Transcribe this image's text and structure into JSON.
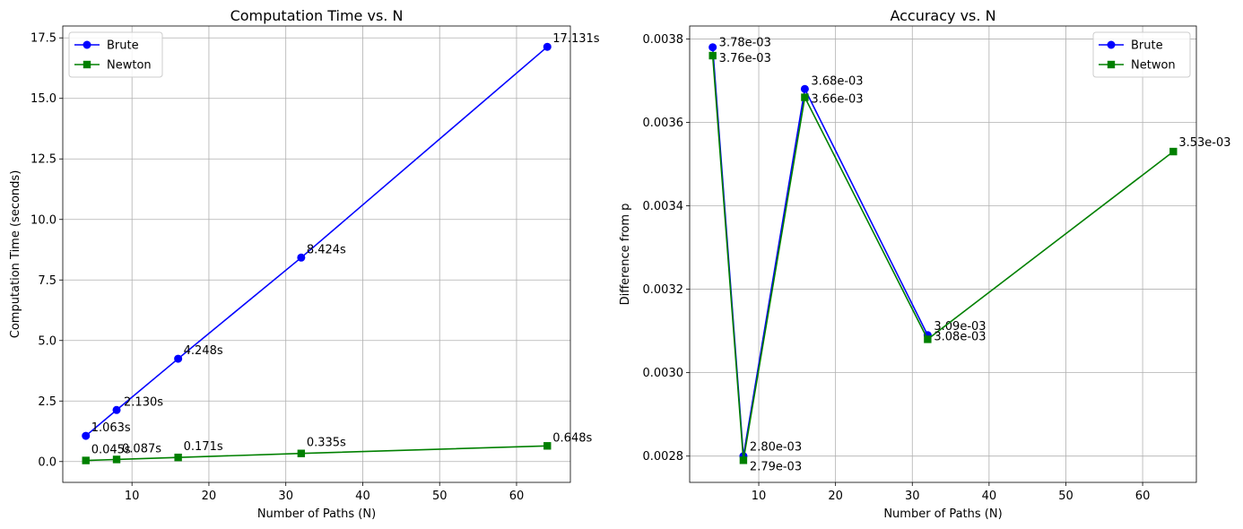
{
  "chart_data": [
    {
      "type": "line",
      "title": "Computation Time vs. N",
      "xlabel": "Number of Paths (N)",
      "ylabel": "Computation Time (seconds)",
      "xlim": [
        1.0,
        67.0
      ],
      "ylim": [
        -0.86,
        17.99
      ],
      "xticks": [
        10,
        20,
        30,
        40,
        50,
        60
      ],
      "xtick_labels": [
        "10",
        "20",
        "30",
        "40",
        "50",
        "60"
      ],
      "yticks": [
        0.0,
        2.5,
        5.0,
        7.5,
        10.0,
        12.5,
        15.0,
        17.5
      ],
      "ytick_labels": [
        "0.0",
        "2.5",
        "5.0",
        "7.5",
        "10.0",
        "12.5",
        "15.0",
        "17.5"
      ],
      "grid": true,
      "legend_position": "top-left",
      "x": [
        4,
        8,
        16,
        32,
        64
      ],
      "series": [
        {
          "name": "Brute",
          "color": "#0000ff",
          "marker": "circle",
          "values": [
            1.063,
            2.13,
            4.248,
            8.424,
            17.131
          ],
          "labels": [
            "1.063s",
            "2.130s",
            "4.248s",
            "8.424s",
            "17.131s"
          ]
        },
        {
          "name": "Newton",
          "color": "#008000",
          "marker": "square",
          "values": [
            0.045,
            0.087,
            0.171,
            0.335,
            0.648
          ],
          "labels": [
            "0.045s",
            "0.087s",
            "0.171s",
            "0.335s",
            "0.648s"
          ]
        }
      ]
    },
    {
      "type": "line",
      "title": "Accuracy vs. N",
      "xlabel": "Number of Paths (N)",
      "ylabel": "Difference from p",
      "xlim": [
        1.0,
        67.0
      ],
      "ylim": [
        0.002737,
        0.003831
      ],
      "xticks": [
        10,
        20,
        30,
        40,
        50,
        60
      ],
      "xtick_labels": [
        "10",
        "20",
        "30",
        "40",
        "50",
        "60"
      ],
      "yticks": [
        0.0028,
        0.003,
        0.0032,
        0.0034,
        0.0036,
        0.0038
      ],
      "ytick_labels": [
        "0.0028",
        "0.0030",
        "0.0032",
        "0.0034",
        "0.0036",
        "0.0038"
      ],
      "grid": true,
      "legend_position": "top-right",
      "x": [
        4,
        8,
        16,
        32,
        64
      ],
      "series": [
        {
          "name": "Brute",
          "color": "#0000ff",
          "marker": "circle",
          "values": [
            0.00378,
            0.0028,
            0.00368,
            0.00309,
            null
          ],
          "labels": [
            "3.78e-03",
            "2.80e-03",
            "3.68e-03",
            "3.09e-03",
            null
          ]
        },
        {
          "name": "Netwon",
          "color": "#008000",
          "marker": "square",
          "values": [
            0.00376,
            0.00279,
            0.00366,
            0.00308,
            0.00353
          ],
          "labels": [
            "3.76e-03",
            "2.79e-03",
            "3.66e-03",
            "3.08e-03",
            "3.53e-03"
          ]
        }
      ]
    }
  ]
}
